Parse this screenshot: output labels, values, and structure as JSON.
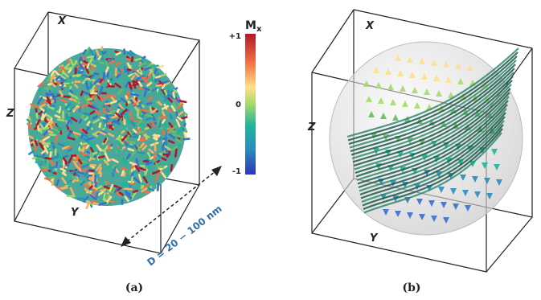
{
  "panels": [
    {
      "label": "(a)",
      "axes": {
        "x": "X",
        "z": "Z",
        "y": "Y"
      },
      "colorbar": {
        "title": "M",
        "subscript": "x",
        "ticks": [
          "+1",
          "0",
          "-1"
        ]
      },
      "dimension": "D = 20 − 100 nm"
    },
    {
      "label": "(b)",
      "axes": {
        "x": "X",
        "z": "Z",
        "y": "Y"
      }
    }
  ]
}
